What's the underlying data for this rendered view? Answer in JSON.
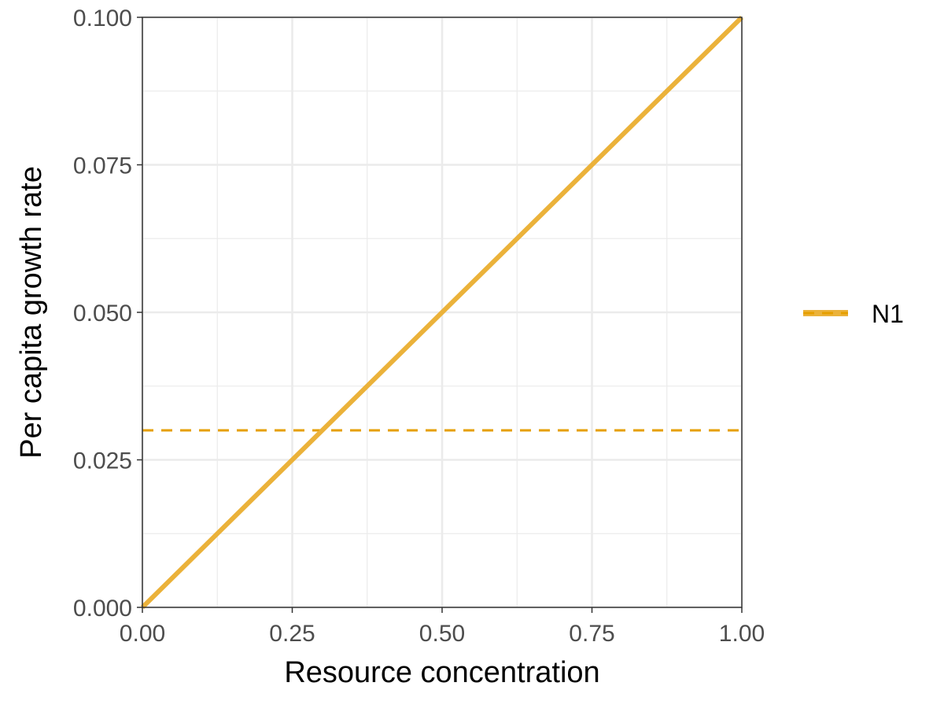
{
  "chart_data": {
    "type": "line",
    "title": "",
    "xlabel": "Resource concentration",
    "ylabel": "Per capita growth rate",
    "xlim": [
      0,
      1
    ],
    "ylim": [
      0,
      0.1
    ],
    "x_ticks": [
      "0.00",
      "0.25",
      "0.50",
      "0.75",
      "1.00"
    ],
    "y_ticks": [
      "0.000",
      "0.025",
      "0.050",
      "0.075",
      "0.100"
    ],
    "grid": true,
    "series": [
      {
        "name": "N1",
        "style": "solid",
        "color": "#EBB23A",
        "x": [
          0,
          1
        ],
        "y": [
          0,
          0.1
        ]
      }
    ],
    "hlines": [
      {
        "name": "N1",
        "y": 0.03,
        "style": "dashed",
        "color": "#E69F00"
      }
    ],
    "legend": {
      "position": "right",
      "entries": [
        "N1"
      ]
    }
  }
}
